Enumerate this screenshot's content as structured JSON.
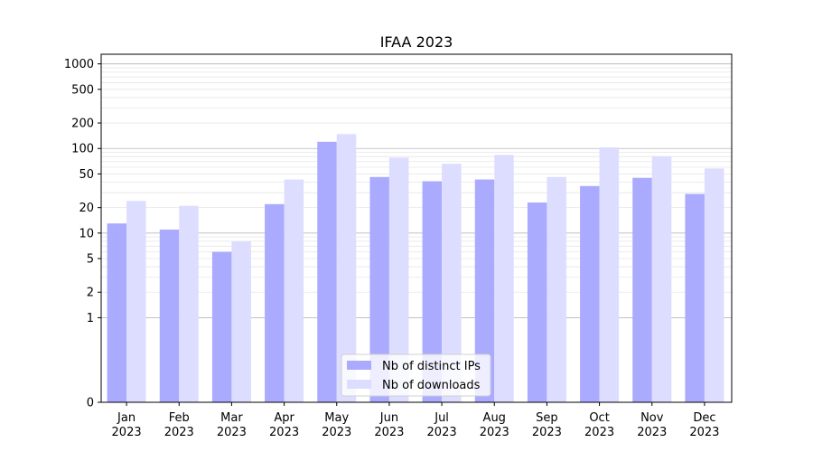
{
  "chart_data": {
    "type": "bar",
    "title": "IFAA 2023",
    "xlabel": "",
    "ylabel": "",
    "y_scale": "symlog",
    "ylim": [
      0,
      1300
    ],
    "grid": true,
    "legend_position": "lower-center",
    "categories": [
      [
        "Jan",
        "2023"
      ],
      [
        "Feb",
        "2023"
      ],
      [
        "Mar",
        "2023"
      ],
      [
        "Apr",
        "2023"
      ],
      [
        "May",
        "2023"
      ],
      [
        "Jun",
        "2023"
      ],
      [
        "Jul",
        "2023"
      ],
      [
        "Aug",
        "2023"
      ],
      [
        "Sep",
        "2023"
      ],
      [
        "Oct",
        "2023"
      ],
      [
        "Nov",
        "2023"
      ],
      [
        "Dec",
        "2023"
      ]
    ],
    "y_ticks": [
      0,
      1,
      2,
      5,
      10,
      20,
      50,
      100,
      200,
      500,
      1000
    ],
    "series": [
      {
        "name": "Nb of distinct IPs",
        "color": "#aaaaff",
        "values": [
          13,
          11,
          6,
          22,
          120,
          46,
          41,
          43,
          23,
          36,
          45,
          29
        ]
      },
      {
        "name": "Nb of downloads",
        "color": "#ddddff",
        "values": [
          24,
          21,
          8,
          43,
          148,
          78,
          66,
          84,
          46,
          103,
          81,
          58
        ]
      }
    ]
  }
}
